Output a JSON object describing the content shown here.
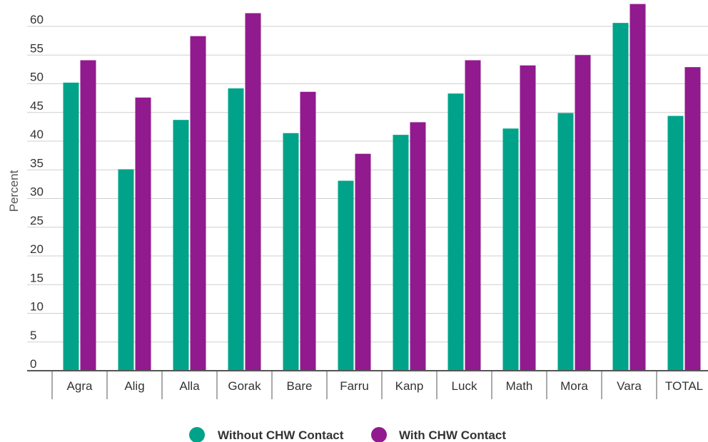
{
  "chart_data": {
    "type": "bar",
    "title": "",
    "xlabel": "",
    "ylabel": "Percent",
    "ylim": [
      0,
      63
    ],
    "yticks": [
      0,
      5,
      10,
      15,
      20,
      25,
      30,
      35,
      40,
      45,
      50,
      55,
      60
    ],
    "grid": true,
    "legend_position": "bottom-center",
    "categories": [
      "Agra",
      "Alig",
      "Alla",
      "Gorak",
      "Bare",
      "Farru",
      "Kanp",
      "Luck",
      "Math",
      "Mora",
      "Vara",
      "TOTAL"
    ],
    "series": [
      {
        "name": "Without CHW Contact",
        "color": "#00a389",
        "values": [
          50.2,
          35.1,
          43.7,
          49.2,
          41.4,
          33.1,
          41.1,
          48.3,
          42.2,
          44.9,
          60.6,
          44.4
        ]
      },
      {
        "name": "With CHW Contact",
        "color": "#911a8e",
        "values": [
          54.1,
          47.6,
          58.3,
          62.3,
          48.6,
          37.8,
          43.3,
          54.1,
          53.2,
          55.0,
          63.9,
          52.9
        ]
      }
    ]
  }
}
